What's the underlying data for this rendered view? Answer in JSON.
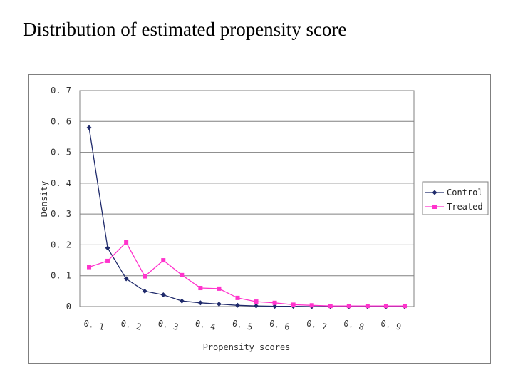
{
  "slide": {
    "title": "Distribution of estimated propensity score"
  },
  "colors": {
    "control": "#1f2a6b",
    "treated": "#ff33cc",
    "grid": "#808080",
    "axis": "#808080"
  },
  "chart_data": {
    "type": "line",
    "xlabel": "Propensity scores",
    "ylabel": "Density",
    "ylim": [
      0,
      0.7
    ],
    "yticks": [
      0,
      0.1,
      0.2,
      0.3,
      0.4,
      0.5,
      0.6,
      0.7
    ],
    "ytick_labels": [
      "0",
      "0. 1",
      "0. 2",
      "0. 3",
      "0. 4",
      "0. 5",
      "0. 6",
      "0. 7"
    ],
    "xtick_labels": [
      "0. 1",
      "0. 2",
      "0. 3",
      "0. 4",
      "0. 5",
      "0. 6",
      "0. 7",
      "0. 8",
      "0. 9"
    ],
    "n_points": 18,
    "grid": true,
    "legend_position": "right",
    "series": [
      {
        "name": "Control",
        "marker": "diamond",
        "values": [
          0.58,
          0.19,
          0.09,
          0.05,
          0.038,
          0.018,
          0.012,
          0.008,
          0.004,
          0.002,
          0.001,
          0.001,
          0,
          0,
          0,
          0,
          0,
          0
        ]
      },
      {
        "name": "Treated",
        "marker": "square",
        "values": [
          0.128,
          0.148,
          0.208,
          0.098,
          0.15,
          0.102,
          0.06,
          0.058,
          0.028,
          0.016,
          0.012,
          0.006,
          0.004,
          0.002,
          0.002,
          0.002,
          0.002,
          0.002
        ]
      }
    ]
  }
}
